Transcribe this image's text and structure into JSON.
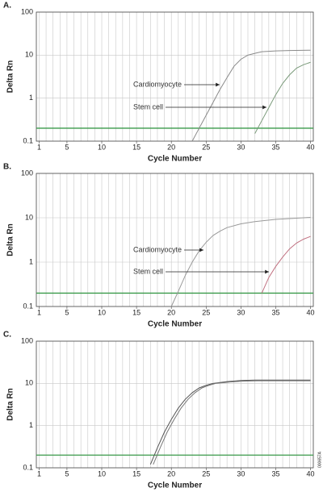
{
  "chart_data": [
    {
      "type": "line",
      "label": "A.",
      "y_label": "Delta Rn",
      "x_label": "Cycle Number",
      "xlim": [
        0.6,
        40.4
      ],
      "xticks": [
        1,
        5,
        10,
        15,
        20,
        25,
        30,
        35,
        40
      ],
      "xgrid_step": 1,
      "ylim": [
        0.1,
        100
      ],
      "yticks": [
        0.1,
        1,
        10,
        100
      ],
      "log_y": true,
      "grid": true,
      "threshold": 0.2,
      "threshold_color": "#3a9a4a",
      "series": [
        {
          "name": "Cardiomyocyte",
          "color": "#8a8a8a",
          "x": [
            23,
            24,
            25,
            26,
            27,
            28,
            29,
            30,
            31,
            32,
            33,
            35,
            37,
            40
          ],
          "values": [
            0.1,
            0.2,
            0.4,
            0.8,
            1.6,
            3,
            5.5,
            8,
            10,
            11,
            12,
            12.5,
            12.8,
            13
          ]
        },
        {
          "name": "Stem cell",
          "color": "#7a9a7a",
          "x": [
            32,
            33,
            34,
            35,
            36,
            37,
            38,
            39,
            40
          ],
          "values": [
            0.15,
            0.3,
            0.6,
            1.2,
            2.2,
            3.5,
            5,
            6,
            6.8
          ]
        }
      ]
    },
    {
      "type": "line",
      "label": "B.",
      "y_label": "Delta Rn",
      "x_label": "Cycle Number",
      "xlim": [
        0.6,
        40.4
      ],
      "xticks": [
        1,
        5,
        10,
        15,
        20,
        25,
        30,
        35,
        40
      ],
      "xgrid_step": 1,
      "ylim": [
        0.1,
        100
      ],
      "yticks": [
        0.1,
        1,
        10,
        100
      ],
      "log_y": true,
      "grid": true,
      "threshold": 0.2,
      "threshold_color": "#3a9a4a",
      "series": [
        {
          "name": "Cardiomyocyte",
          "color": "#999999",
          "x": [
            20,
            21,
            22,
            23,
            24,
            25,
            26,
            27,
            28,
            30,
            32,
            35,
            38,
            40
          ],
          "values": [
            0.1,
            0.22,
            0.5,
            1,
            1.8,
            2.8,
            4,
            5,
            6,
            7.3,
            8.2,
            9.2,
            9.8,
            10.2
          ]
        },
        {
          "name": "Stem cell",
          "color": "#c07080",
          "x": [
            33,
            34,
            35,
            36,
            37,
            38,
            39,
            40
          ],
          "values": [
            0.2,
            0.45,
            0.8,
            1.3,
            2,
            2.7,
            3.3,
            3.8
          ]
        }
      ]
    },
    {
      "type": "line",
      "label": "C.",
      "y_label": "Delta Rn",
      "x_label": "Cycle Number",
      "xlim": [
        0.6,
        40.4
      ],
      "xticks": [
        1,
        5,
        10,
        15,
        20,
        25,
        30,
        35,
        40
      ],
      "xgrid_step": 1,
      "ylim": [
        0.1,
        100
      ],
      "yticks": [
        0.1,
        1,
        10,
        100
      ],
      "log_y": true,
      "grid": true,
      "threshold": 0.2,
      "threshold_color": "#3a9a4a",
      "figure_id": "000657A",
      "series": [
        {
          "color": "#555555",
          "x": [
            17,
            18,
            19,
            20,
            21,
            22,
            23,
            24,
            25,
            26,
            28,
            30,
            32,
            35,
            40
          ],
          "values": [
            0.12,
            0.3,
            0.7,
            1.4,
            2.6,
            4.2,
            6,
            7.8,
            9,
            10,
            11,
            11.7,
            12,
            12,
            12
          ]
        },
        {
          "color": "#777777",
          "x": [
            17.4,
            18.4,
            19.4,
            20.4,
            21.4,
            22.4,
            23.4,
            24.4,
            25.4,
            26.4,
            28.4,
            30.4,
            32.4,
            35,
            40
          ],
          "values": [
            0.12,
            0.3,
            0.7,
            1.4,
            2.6,
            4.2,
            6,
            7.8,
            9,
            10,
            10.8,
            11.3,
            11.5,
            11.5,
            11.5
          ]
        }
      ]
    }
  ]
}
